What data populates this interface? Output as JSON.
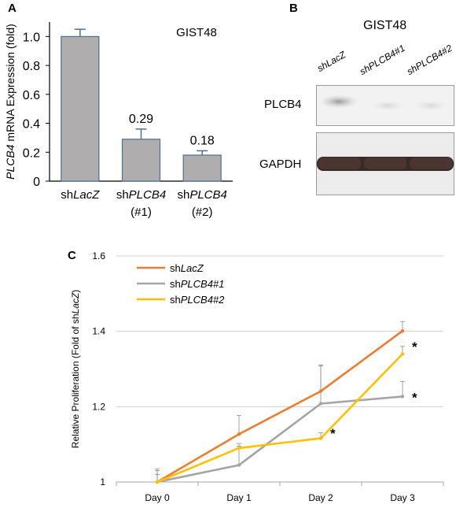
{
  "panels": {
    "a": {
      "letter": "A"
    },
    "b": {
      "letter": "B"
    },
    "c": {
      "letter": "C"
    }
  },
  "chart_data": [
    {
      "type": "bar",
      "panel": "A",
      "title": "GIST48",
      "ylabel_italic": "PLCB4",
      "ylabel_rest": " mRNA Expression (fold)",
      "ylim": [
        0,
        1.1
      ],
      "yticks": [
        "0",
        "0.2",
        "0.4",
        "0.6",
        "0.8",
        "1.0"
      ],
      "categories": [
        {
          "pre": "sh",
          "ital": "LacZ",
          "sub": ""
        },
        {
          "pre": "sh",
          "ital": "PLCB4",
          "sub": "(#1)"
        },
        {
          "pre": "sh",
          "ital": "PLCB4",
          "sub": "(#2)"
        }
      ],
      "values": [
        1.0,
        0.29,
        0.18
      ],
      "errors": [
        0.05,
        0.07,
        0.03
      ],
      "data_labels": [
        "",
        "0.29",
        "0.18"
      ],
      "bar_color": "#b0adae",
      "bar_edge": "#4f6f8f"
    },
    {
      "type": "line",
      "panel": "C",
      "ylabel_pre": "Relative Proliferation (Fold of sh",
      "ylabel_ital": "LacZ",
      "ylabel_post": ")",
      "x": [
        "Day 0",
        "Day 1",
        "Day 2",
        "Day 3"
      ],
      "ylim": [
        1,
        1.6
      ],
      "yticks": [
        "1",
        "1.2",
        "1.4",
        "1.6"
      ],
      "grid": true,
      "legend": "top-left",
      "series": [
        {
          "name_pre": "sh",
          "name_ital": "LacZ",
          "color": "#ed7d31",
          "values": [
            1.0,
            1.127,
            1.241,
            1.401
          ],
          "errors": [
            0.035,
            0.05,
            0.07,
            0.025
          ]
        },
        {
          "name_pre": "sh",
          "name_ital": "PLCB4#1",
          "color": "#a5a5a5",
          "values": [
            1.0,
            1.045,
            1.208,
            1.227
          ],
          "errors": [
            0.03,
            0.05,
            0.1,
            0.04
          ]
        },
        {
          "name_pre": "sh",
          "name_ital": "PLCB4#2",
          "color": "#ffc000",
          "values": [
            1.0,
            1.09,
            1.116,
            1.34
          ],
          "errors": [
            0.02,
            0.012,
            0.015,
            0.02
          ]
        }
      ],
      "annotations": [
        {
          "text": "*",
          "x_index": 2,
          "y": 1.13
        },
        {
          "text": "*",
          "x_index": 3,
          "y": 1.36
        },
        {
          "text": "*",
          "x_index": 3,
          "y": 1.225
        }
      ]
    }
  ],
  "blot": {
    "title": "GIST48",
    "lanes": [
      {
        "pre": "sh",
        "ital": "LacZ"
      },
      {
        "pre": "sh",
        "ital": "PLCB4#1"
      },
      {
        "pre": "sh",
        "ital": "PLCB4#2"
      }
    ],
    "rows": [
      {
        "label": "PLCB4"
      },
      {
        "label": "GAPDH"
      }
    ]
  }
}
